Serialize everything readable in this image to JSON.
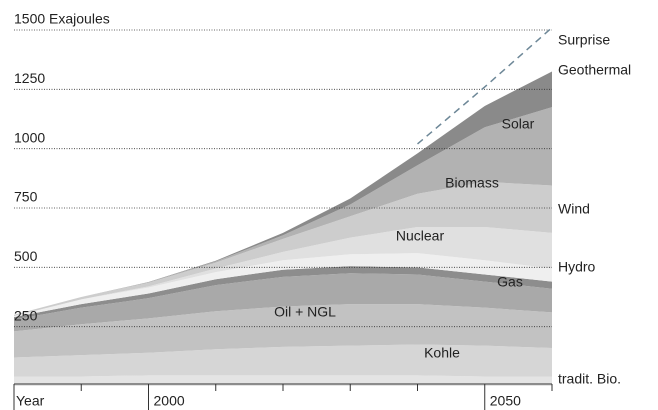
{
  "chart_data": {
    "type": "stacked_area",
    "x_label": "Year",
    "x": [
      1980,
      1990,
      2000,
      2010,
      2020,
      2030,
      2040,
      2050,
      2060
    ],
    "xlim": [
      1980,
      2060
    ],
    "xticks": [
      2000,
      2050
    ],
    "xminor_ticks": [
      1990,
      2010,
      2020,
      2030,
      2040,
      2060
    ],
    "ylim": [
      0,
      1500
    ],
    "yticks": [
      250,
      500,
      750,
      1000,
      1250,
      {
        "value": 1500,
        "label": "1500 Exajoules"
      }
    ],
    "grid": true,
    "series": [
      {
        "name": "tradit. Bio.",
        "color": "#e4e4e4",
        "values": [
          40,
          40,
          45,
          45,
          45,
          45,
          45,
          40,
          40
        ]
      },
      {
        "name": "Kohle",
        "color": "#d6d6d6",
        "values": [
          80,
          90,
          95,
          110,
          120,
          125,
          130,
          130,
          120
        ]
      },
      {
        "name": "Oil + NGL",
        "color": "#c2c2c2",
        "values": [
          110,
          130,
          145,
          160,
          170,
          175,
          170,
          160,
          150
        ]
      },
      {
        "name": "Gas",
        "color": "#a9a9a9",
        "values": [
          50,
          70,
          85,
          110,
          125,
          130,
          125,
          110,
          100
        ]
      },
      {
        "name": "Hydro",
        "color": "#8d8d8d",
        "values": [
          10,
          15,
          20,
          25,
          30,
          30,
          30,
          30,
          30
        ]
      },
      {
        "name": "Nuclear",
        "color": "#efefef",
        "values": [
          5,
          20,
          25,
          30,
          40,
          50,
          60,
          60,
          55
        ]
      },
      {
        "name": "Wind",
        "color": "#e0e0e0",
        "values": [
          0,
          0,
          5,
          15,
          35,
          70,
          110,
          140,
          150
        ]
      },
      {
        "name": "Biomass",
        "color": "#cdcdcd",
        "values": [
          5,
          10,
          15,
          25,
          55,
          90,
          140,
          190,
          200
        ]
      },
      {
        "name": "Solar",
        "color": "#b2b2b2",
        "values": [
          0,
          0,
          2,
          5,
          15,
          50,
          120,
          230,
          330
        ]
      },
      {
        "name": "Geothermal",
        "color": "#8a8a8a",
        "values": [
          0,
          0,
          1,
          3,
          10,
          25,
          50,
          90,
          150
        ]
      }
    ],
    "surprise": {
      "name": "Surprise",
      "color": "#6d8797",
      "values": [
        null,
        null,
        null,
        null,
        null,
        null,
        1020,
        1260,
        1510
      ]
    }
  }
}
